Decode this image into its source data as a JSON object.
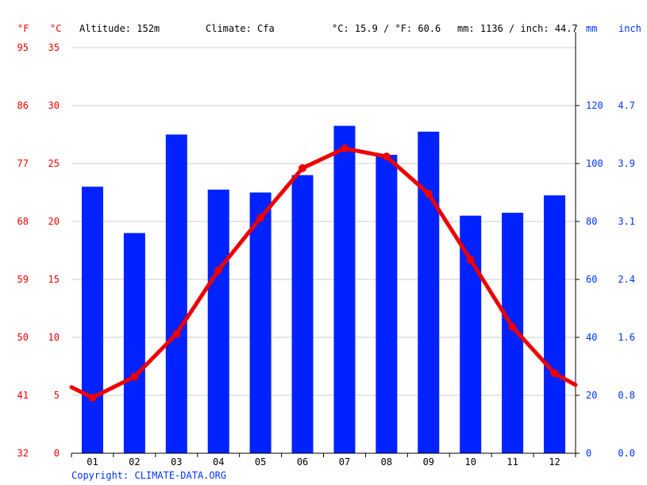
{
  "header": {
    "unit_f": "°F",
    "unit_c": "°C",
    "altitude": "Altitude: 152m",
    "climate": "Climate: Cfa",
    "temp_avg": "°C: 15.9 / °F: 60.6",
    "precip_total": "mm: 1136 / inch: 44.7",
    "unit_mm": "mm",
    "unit_inch": "inch"
  },
  "copyright": "Copyright: CLIMATE-DATA.ORG",
  "colors": {
    "bars": "#0022ff",
    "line": "#ee0000",
    "grid": "#cccccc",
    "left_labels": "#ee0000",
    "right_labels": "#0033ff"
  },
  "chart_data": {
    "type": "bar",
    "categories": [
      "01",
      "02",
      "03",
      "04",
      "05",
      "06",
      "07",
      "08",
      "09",
      "10",
      "11",
      "12"
    ],
    "series": [
      {
        "values": [
          92,
          76,
          110,
          91,
          90,
          96,
          113,
          103,
          111,
          82,
          83,
          89
        ],
        "axis": "right",
        "render": "bar"
      },
      {
        "values": [
          4.8,
          6.6,
          10.3,
          15.8,
          20.3,
          24.6,
          26.3,
          25.6,
          22.4,
          16.7,
          10.9,
          6.9
        ],
        "axis": "left",
        "render": "line"
      }
    ],
    "line_edge_values": [
      5.7,
      5.9
    ],
    "left_axis": {
      "ticks_c": [
        "35",
        "30",
        "25",
        "20",
        "15",
        "10",
        "5",
        "0"
      ],
      "ticks_f": [
        "95",
        "86",
        "77",
        "68",
        "59",
        "50",
        "41",
        "32"
      ],
      "range": [
        0,
        35
      ]
    },
    "right_axis": {
      "ticks_mm": [
        "120",
        "100",
        "80",
        "60",
        "40",
        "20",
        "0"
      ],
      "ticks_inch": [
        "4.7",
        "3.9",
        "3.1",
        "2.4",
        "1.6",
        "0.8",
        "0.0"
      ],
      "range": [
        0,
        140
      ]
    },
    "grid": true
  }
}
